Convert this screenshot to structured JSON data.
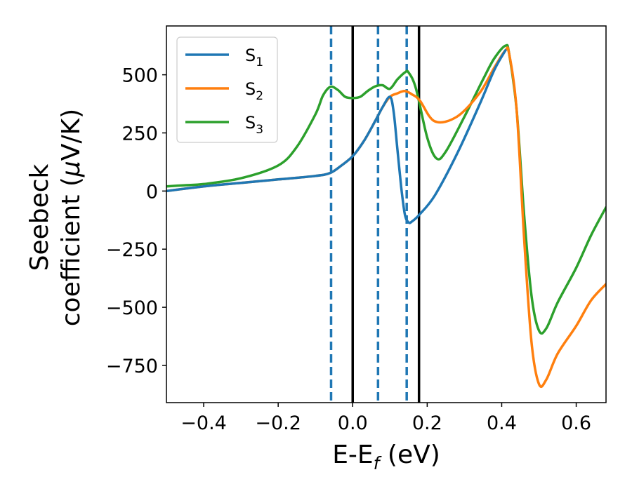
{
  "chart_data": {
    "type": "line",
    "xlabel": {
      "main": "E-E",
      "sub": "f",
      "unit": " (eV)"
    },
    "ylabel": {
      "line1": "Seebeck",
      "line2": "coefficient  (",
      "mu": "μ",
      "line2_end": "V/K)"
    },
    "xlim": [
      -0.5,
      0.68
    ],
    "ylim": [
      -910,
      710
    ],
    "xticks": [
      -0.4,
      -0.2,
      0.0,
      0.2,
      0.4,
      0.6
    ],
    "xtick_labels": [
      "−0.4",
      "−0.2",
      "0.0",
      "0.2",
      "0.4",
      "0.6"
    ],
    "yticks": [
      500,
      250,
      0,
      -250,
      -500,
      -750
    ],
    "ytick_labels": [
      "500",
      "250",
      "0",
      "−250",
      "−500",
      "−750"
    ],
    "grid": false,
    "legend_placement": "top-left",
    "vlines": [
      {
        "x": -0.058,
        "style": "dashed",
        "color": "#1f77b4"
      },
      {
        "x": 0.0,
        "style": "solid",
        "color": "#000000"
      },
      {
        "x": 0.068,
        "style": "dashed",
        "color": "#1f77b4"
      },
      {
        "x": 0.145,
        "style": "dashed",
        "color": "#1f77b4"
      },
      {
        "x": 0.178,
        "style": "solid",
        "color": "#000000"
      }
    ],
    "series": [
      {
        "name": "S",
        "sub": "1",
        "color": "#1f77b4",
        "x": [
          -0.5,
          -0.4,
          -0.3,
          -0.2,
          -0.1,
          -0.06,
          -0.03,
          0.0,
          0.03,
          0.06,
          0.08,
          0.1,
          0.11,
          0.12,
          0.13,
          0.14,
          0.15,
          0.16,
          0.18,
          0.22,
          0.28,
          0.34,
          0.38,
          0.41
        ],
        "y": [
          0,
          20,
          35,
          50,
          65,
          78,
          110,
          150,
          215,
          300,
          360,
          405,
          340,
          180,
          20,
          -100,
          -135,
          -130,
          -100,
          -20,
          160,
          370,
          520,
          605
        ]
      },
      {
        "name": "S",
        "sub": "2",
        "color": "#ff7f0e",
        "x": [
          -0.5,
          -0.4,
          -0.3,
          -0.2,
          -0.1,
          -0.06,
          -0.03,
          0.0,
          0.03,
          0.06,
          0.08,
          0.1,
          0.12,
          0.14,
          0.16,
          0.18,
          0.22,
          0.28,
          0.34,
          0.38,
          0.41,
          0.42,
          0.44,
          0.46,
          0.48,
          0.5,
          0.52,
          0.55,
          0.6,
          0.64,
          0.68
        ],
        "y": [
          0,
          20,
          35,
          50,
          65,
          78,
          110,
          150,
          215,
          300,
          360,
          405,
          420,
          430,
          415,
          390,
          300,
          320,
          420,
          530,
          605,
          590,
          350,
          -200,
          -650,
          -830,
          -810,
          -700,
          -580,
          -470,
          -400
        ]
      },
      {
        "name": "S",
        "sub": "3",
        "color": "#2ca02c",
        "x": [
          -0.5,
          -0.45,
          -0.4,
          -0.3,
          -0.2,
          -0.15,
          -0.1,
          -0.08,
          -0.06,
          -0.04,
          -0.02,
          0.0,
          0.02,
          0.04,
          0.06,
          0.08,
          0.1,
          0.12,
          0.14,
          0.15,
          0.17,
          0.2,
          0.225,
          0.25,
          0.3,
          0.35,
          0.38,
          0.41,
          0.42,
          0.44,
          0.46,
          0.48,
          0.5,
          0.52,
          0.55,
          0.6,
          0.64,
          0.68
        ],
        "y": [
          20,
          25,
          30,
          55,
          110,
          190,
          330,
          410,
          448,
          435,
          405,
          400,
          405,
          430,
          450,
          455,
          440,
          480,
          510,
          510,
          440,
          230,
          140,
          170,
          320,
          480,
          570,
          625,
          590,
          350,
          -100,
          -450,
          -600,
          -590,
          -480,
          -330,
          -190,
          -70
        ]
      }
    ]
  }
}
